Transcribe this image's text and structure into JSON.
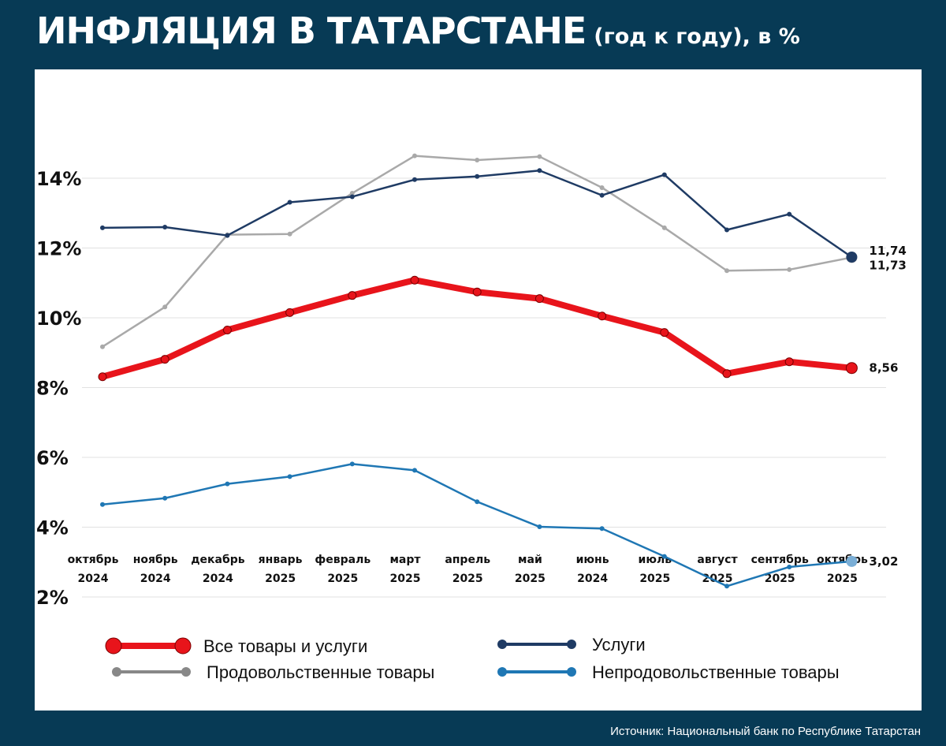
{
  "title": {
    "main": "ИНФЛЯЦИЯ В ТАТАРСТАНЕ",
    "sub": "(год к году), в %"
  },
  "source": "Источник: Национальный банк по Республике Татарстан",
  "colors": {
    "background": "#073a55",
    "all_goods": "#e8141b",
    "services": "#1f3b64",
    "food": "#a9a9a9",
    "nonfood": "#1f77b4"
  },
  "chart_data": {
    "type": "line",
    "title": "ИНФЛЯЦИЯ В ТАТАРСТАНЕ (год к году), в %",
    "categories": [
      [
        "октябрь",
        "2024"
      ],
      [
        "ноябрь",
        "2024"
      ],
      [
        "декабрь",
        "2024"
      ],
      [
        "январь",
        "2025"
      ],
      [
        "февраль",
        "2025"
      ],
      [
        "март",
        "2025"
      ],
      [
        "апрель",
        "2025"
      ],
      [
        "май",
        "2025"
      ],
      [
        "июнь",
        "2024"
      ],
      [
        "июль",
        "2025"
      ],
      [
        "август",
        "2025"
      ],
      [
        "сентябрь",
        "2025"
      ],
      [
        "октябрь",
        "2025"
      ]
    ],
    "yticks": [
      2,
      4,
      6,
      8,
      10,
      12,
      14
    ],
    "ytick_labels": [
      "2%",
      "4%",
      "6%",
      "8%",
      "10%",
      "12%",
      "14%"
    ],
    "ylim": [
      1.5,
      15.0
    ],
    "grid": true,
    "legend_position": "bottom",
    "series": [
      {
        "name": "Все товары и услуги",
        "color": "#e8141b",
        "values": [
          8.31,
          8.81,
          9.65,
          10.15,
          10.64,
          11.08,
          10.74,
          10.55,
          10.05,
          9.58,
          8.4,
          8.74,
          8.56
        ],
        "end_label": "8,56"
      },
      {
        "name": "Услуги",
        "color": "#1f3b64",
        "values": [
          12.58,
          12.6,
          12.36,
          13.31,
          13.47,
          13.96,
          14.05,
          14.22,
          13.51,
          14.1,
          12.52,
          12.97,
          11.74
        ],
        "end_label": "11,74"
      },
      {
        "name": "Продовольственные товары",
        "color": "#a9a9a9",
        "values": [
          9.17,
          10.31,
          12.38,
          12.4,
          13.57,
          14.64,
          14.52,
          14.62,
          13.73,
          12.58,
          11.35,
          11.38,
          11.73
        ],
        "end_label": "11,73"
      },
      {
        "name": "Непродовольственные товары",
        "color": "#1f77b4",
        "values": [
          4.65,
          4.83,
          5.24,
          5.45,
          5.81,
          5.63,
          4.73,
          4.01,
          3.96,
          3.16,
          2.31,
          2.86,
          3.02
        ],
        "end_label": "3,02"
      }
    ]
  }
}
